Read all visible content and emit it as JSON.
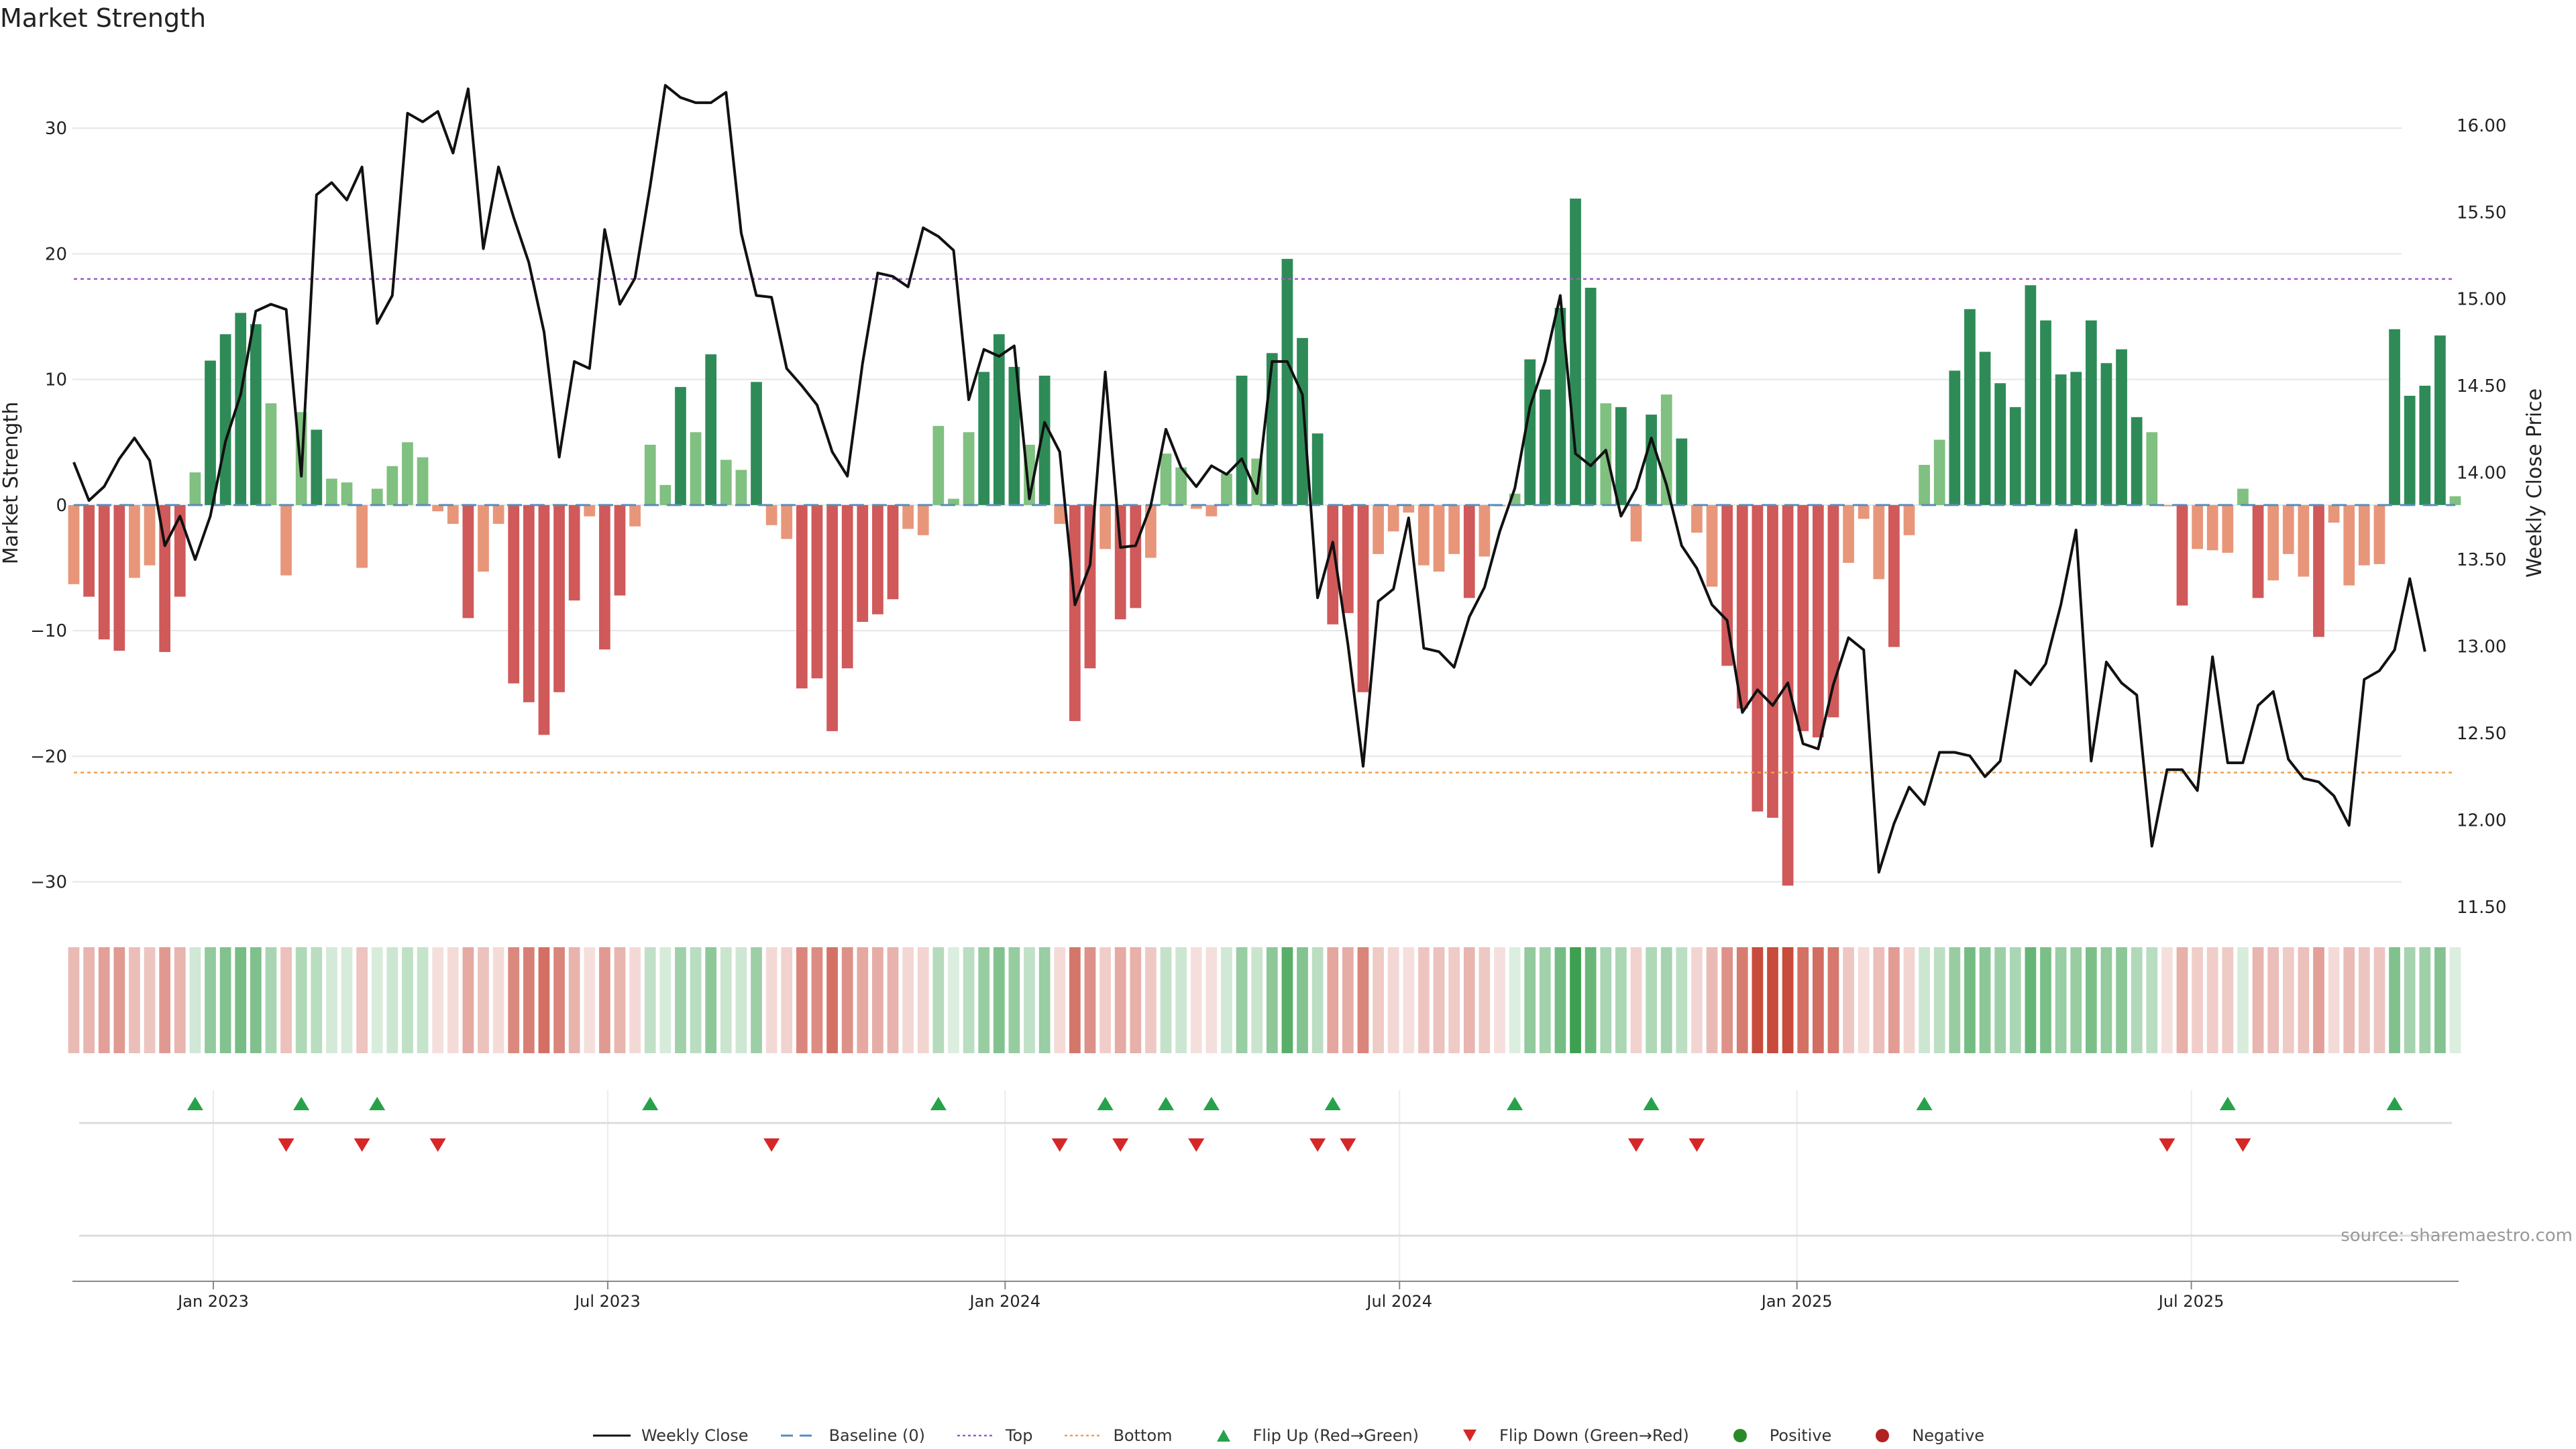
{
  "chart_data": {
    "type": "bar+line",
    "title": "Market Strength",
    "ylabel_left": "Market Strength",
    "ylabel_right": "Weekly Close Price",
    "ylim_left": [
      -32,
      33
    ],
    "ylim_right": [
      11.5,
      16.2
    ],
    "yticks_left": [
      -30,
      -20,
      -10,
      0,
      10,
      20,
      30
    ],
    "yticks_right": [
      "11.50",
      "12.00",
      "12.50",
      "13.00",
      "13.50",
      "14.00",
      "14.50",
      "15.00",
      "15.50",
      "16.00"
    ],
    "x_ticks": [
      {
        "label": "Jan 2023",
        "week": 9.2
      },
      {
        "label": "Jul 2023",
        "week": 35.2
      },
      {
        "label": "Jan 2024",
        "week": 61.4
      },
      {
        "label": "Jul 2024",
        "week": 87.4
      },
      {
        "label": "Jan 2025",
        "week": 113.6
      },
      {
        "label": "Jul 2025",
        "week": 139.6
      }
    ],
    "top_threshold": 18,
    "bottom_threshold": -21.3,
    "strength": [
      -6.3,
      -7.3,
      -10.7,
      -11.6,
      -5.8,
      -4.8,
      -11.7,
      -7.3,
      2.6,
      11.5,
      13.6,
      15.3,
      14.4,
      8.1,
      -5.6,
      7.4,
      6,
      2.1,
      1.8,
      -5,
      1.3,
      3.1,
      5,
      3.8,
      -0.5,
      -1.5,
      -9,
      -5.3,
      -1.5,
      -14.2,
      -15.7,
      -18.3,
      -14.9,
      -7.6,
      -0.9,
      -11.5,
      -7.2,
      -1.7,
      4.8,
      1.6,
      9.4,
      5.8,
      12,
      3.6,
      2.8,
      9.8,
      -1.6,
      -2.7,
      -14.6,
      -13.8,
      -18,
      -13,
      -9.3,
      -8.7,
      -7.5,
      -1.9,
      -2.4,
      6.3,
      0.5,
      5.8,
      10.6,
      13.6,
      11,
      4.8,
      10.3,
      -1.5,
      -17.2,
      -13,
      -3.5,
      -9.1,
      -8.2,
      -4.2,
      4.1,
      3,
      -0.3,
      -0.9,
      2.5,
      10.3,
      3.7,
      12.1,
      19.6,
      13.3,
      5.7,
      -9.5,
      -8.6,
      -14.9,
      -3.9,
      -2.1,
      -0.6,
      -4.8,
      -5.3,
      -3.9,
      -7.4,
      -4.1,
      -0.1,
      0.9,
      11.6,
      9.2,
      15.7,
      24.4,
      17.3,
      8.1,
      7.8,
      -2.9,
      7.2,
      8.8,
      5.3,
      -2.2,
      -6.5,
      -12.8,
      -16.2,
      -24.4,
      -24.9,
      -30.3,
      -18,
      -18.5,
      -16.9,
      -4.6,
      -1.1,
      -5.9,
      -11.3,
      -2.4,
      3.2,
      5.2,
      10.7,
      15.6,
      12.2,
      9.7,
      7.8,
      17.5,
      14.7,
      10.4,
      10.6,
      14.7,
      11.3,
      12.4,
      7,
      5.8,
      -0.1,
      -8,
      -3.5,
      -3.6,
      -3.8,
      1.3,
      -7.4,
      -6,
      -3.9,
      -5.7,
      -10.5,
      -1.4,
      -6.4,
      -4.8,
      -4.7,
      14,
      8.7,
      9.5,
      13.5,
      0.7
    ],
    "flip_up_weeks": [
      8,
      15,
      20,
      38,
      57,
      68,
      72,
      75,
      83,
      95,
      104,
      122,
      142,
      153
    ],
    "flip_down_weeks": [
      14,
      19,
      24,
      46,
      65,
      69,
      74,
      82,
      84,
      103,
      107,
      138,
      143
    ],
    "weekly_close": [
      14.06,
      13.84,
      13.92,
      14.08,
      14.2,
      14.07,
      13.58,
      13.75,
      13.5,
      13.75,
      14.18,
      14.45,
      14.93,
      14.97,
      14.94,
      13.98,
      15.6,
      15.67,
      15.57,
      15.76,
      14.86,
      15.02,
      16.07,
      16.02,
      16.08,
      15.84,
      16.21,
      15.29,
      15.76,
      15.47,
      15.21,
      14.81,
      14.09,
      14.64,
      14.6,
      15.4,
      14.97,
      15.12,
      15.65,
      16.23,
      16.16,
      16.13,
      16.13,
      16.19,
      15.38,
      15.02,
      15.01,
      14.6,
      14.5,
      14.39,
      14.12,
      13.98,
      14.63,
      15.15,
      15.13,
      15.07,
      15.41,
      15.36,
      15.28,
      14.42,
      14.71,
      14.67,
      14.73,
      13.85,
      14.29,
      14.12,
      13.24,
      13.47,
      14.58,
      13.57,
      13.58,
      13.81,
      14.25,
      14.03,
      13.92,
      14.04,
      13.99,
      14.08,
      13.88,
      14.64,
      14.64,
      14.45,
      13.28,
      13.6,
      13.01,
      12.31,
      13.26,
      13.33,
      13.74,
      12.99,
      12.97,
      12.88,
      13.17,
      13.34,
      13.66,
      13.91,
      14.38,
      14.64,
      15.02,
      14.11,
      14.04,
      14.13,
      13.75,
      13.91,
      14.2,
      13.93,
      13.58,
      13.45,
      13.24,
      13.15,
      12.62,
      12.75,
      12.66,
      12.79,
      12.44,
      12.41,
      12.78,
      13.05,
      12.98,
      11.7,
      11.98,
      12.19,
      12.09,
      12.39,
      12.39,
      12.37,
      12.25,
      12.34,
      12.86,
      12.78,
      12.9,
      13.24,
      13.67,
      12.34,
      12.91,
      12.79,
      12.72,
      11.85,
      12.29,
      12.29,
      12.17,
      12.94,
      12.33,
      12.33,
      12.66,
      12.74,
      12.35,
      12.24,
      12.22,
      12.14,
      11.97,
      12.81,
      12.86,
      12.98,
      13.39,
      12.97
    ]
  },
  "source_text": "source: sharemaestro.com",
  "legend": [
    {
      "name": "legend-weekly-close",
      "label": "Weekly Close",
      "symbol": "line",
      "color": "#111111"
    },
    {
      "name": "legend-baseline",
      "label": "Baseline (0)",
      "symbol": "dash",
      "color": "#5b8db8"
    },
    {
      "name": "legend-top",
      "label": "Top",
      "symbol": "dot",
      "color": "#a259c9"
    },
    {
      "name": "legend-bottom",
      "label": "Bottom",
      "symbol": "dot",
      "color": "#f0a050"
    },
    {
      "name": "legend-flip-up",
      "label": "Flip Up (Red→Green)",
      "symbol": "tri-up",
      "color": "#27a24a"
    },
    {
      "name": "legend-flip-down",
      "label": "Flip Down (Green→Red)",
      "symbol": "tri-down",
      "color": "#d62728"
    },
    {
      "name": "legend-positive",
      "label": "Positive",
      "symbol": "circle",
      "color": "#2a8a2a"
    },
    {
      "name": "legend-negative",
      "label": "Negative",
      "symbol": "circle",
      "color": "#b22222"
    }
  ],
  "colors": {
    "pos_strong": "#2e8b57",
    "pos_weak": "#80c080",
    "neg_strong": "#d0595a",
    "neg_weak": "#e8967a",
    "grid": "#e6e6e6",
    "axis": "#888888",
    "text": "#222222",
    "source": "#999999"
  }
}
